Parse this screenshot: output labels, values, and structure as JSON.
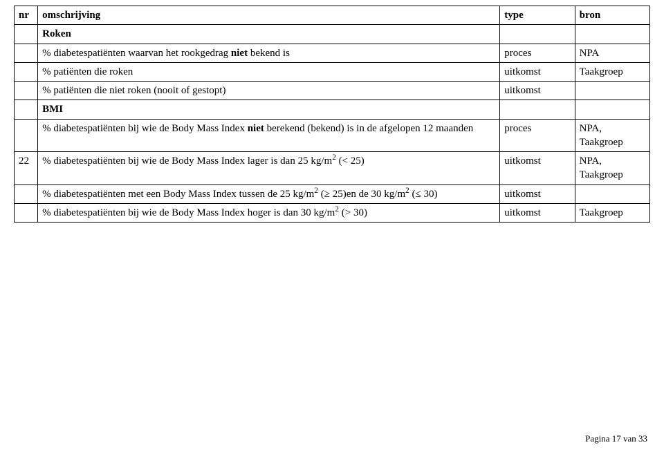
{
  "table": {
    "headers": {
      "nr": "nr",
      "omschrijving": "omschrijving",
      "type": "type",
      "bron": "bron"
    },
    "section_roken": "Roken",
    "rows": {
      "r1": {
        "nr": "",
        "desc_pre": "% diabetespatiënten waarvan het rookgedrag ",
        "desc_bold": "niet",
        "desc_post": " bekend is",
        "type": "proces",
        "bron": "NPA"
      },
      "r2": {
        "nr": "",
        "desc": "% patiënten die roken",
        "type": "uitkomst",
        "bron": "Taakgroep"
      },
      "r3": {
        "nr": "",
        "desc": "% patiënten die niet roken (nooit of gestopt)",
        "type": "uitkomst",
        "bron": ""
      }
    },
    "section_bmi": "BMI",
    "rows2": {
      "r4": {
        "nr": "",
        "desc_pre": "% diabetespatiënten bij wie de Body Mass Index ",
        "desc_bold": "niet",
        "desc_post": " berekend (bekend) is in de afgelopen 12 maanden",
        "type": "proces",
        "bron": "NPA, Taakgroep"
      },
      "r5": {
        "nr": "22",
        "desc_pre": "% diabetespatiënten bij wie de Body Mass Index lager is dan 25 kg/m",
        "desc_sup": "2",
        "desc_post": " (< 25)",
        "type": "uitkomst",
        "bron": "NPA, Taakgroep"
      },
      "r6": {
        "nr": "",
        "desc_p1": "% diabetespatiënten met een Body Mass Index tussen de 25 kg/m",
        "desc_s1": "2",
        "desc_p2": " (≥ 25)en de 30 kg/m",
        "desc_s2": "2",
        "desc_p3": "  (≤ 30)",
        "type": "uitkomst",
        "bron": ""
      },
      "r7": {
        "nr": "",
        "desc_pre": "% diabetespatiënten bij wie de Body Mass Index hoger is dan 30 kg/m",
        "desc_sup": "2",
        "desc_post": " (> 30)",
        "type": "uitkomst",
        "bron": "Taakgroep"
      }
    }
  },
  "footer": "Pagina 17 van 33"
}
